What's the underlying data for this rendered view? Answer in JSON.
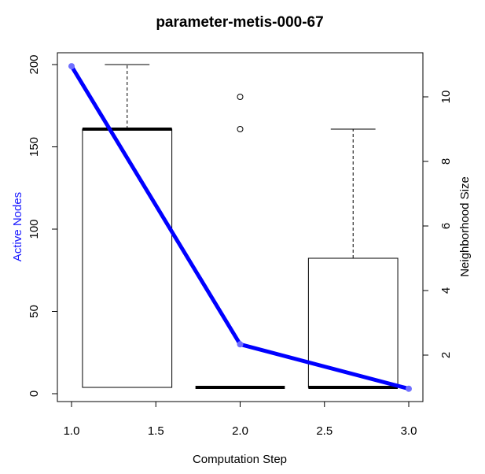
{
  "chart_data": {
    "type": "box+line",
    "title": "parameter-metis-000-67",
    "xlabel": "Computation Step",
    "ylabel_left": "Active Nodes",
    "ylabel_right": "Neighborhood Size",
    "xlim": [
      1.0,
      3.0
    ],
    "ylim_left": [
      0,
      200
    ],
    "ylim_right": [
      1,
      11
    ],
    "x_ticks": [
      "1.0",
      "1.5",
      "2.0",
      "2.5",
      "3.0"
    ],
    "y_left_ticks": [
      "0",
      "50",
      "100",
      "150",
      "200"
    ],
    "y_right_ticks": [
      "2",
      "4",
      "6",
      "8",
      "10"
    ],
    "line_series": {
      "name": "Active Nodes",
      "color": "#0000ff",
      "x": [
        1,
        2,
        3
      ],
      "y": [
        199,
        30,
        3
      ]
    },
    "boxplots": [
      {
        "x": 1.33,
        "min": 1,
        "q1": 1,
        "median": 9,
        "q3": 9,
        "max": 11,
        "outliers": []
      },
      {
        "x": 2.0,
        "min": 1,
        "q1": 1,
        "median": 1,
        "q3": 1,
        "max": 1,
        "outliers": [
          9,
          10
        ]
      },
      {
        "x": 2.67,
        "min": 1,
        "q1": 1,
        "median": 1,
        "q3": 5,
        "max": 9,
        "outliers": []
      }
    ],
    "box_width": 0.53,
    "grid": false,
    "legend": "none"
  }
}
